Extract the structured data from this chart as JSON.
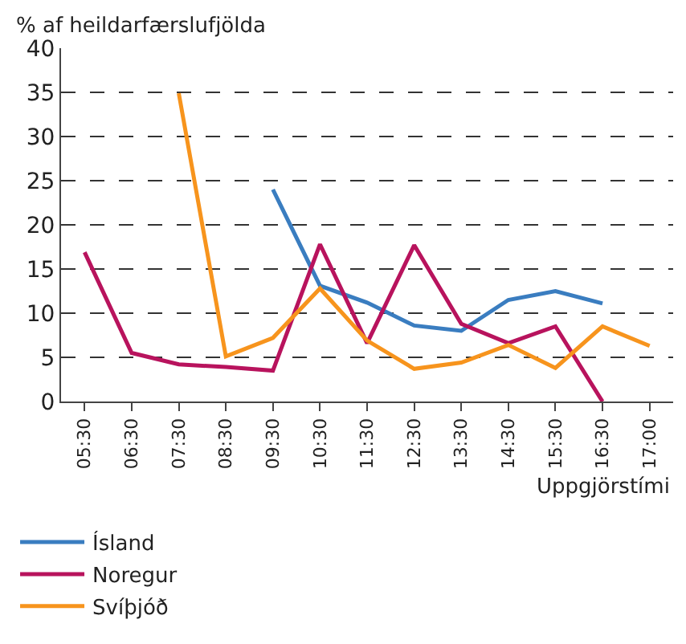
{
  "chart_data": {
    "type": "line",
    "ylabel": "% af heildarfærslufjölda",
    "xlabel": "Uppgjörstími",
    "categories": [
      "05:30",
      "06:30",
      "07:30",
      "08:30",
      "09:30",
      "10:30",
      "11:30",
      "12:30",
      "13:30",
      "14:30",
      "15:30",
      "16:30",
      "17:00"
    ],
    "series": [
      {
        "name": "Ísland",
        "color": "#3a7dc0",
        "values": [
          null,
          null,
          null,
          null,
          24.0,
          13.1,
          11.2,
          8.6,
          8.0,
          11.5,
          12.5,
          11.1,
          null
        ]
      },
      {
        "name": "Noregur",
        "color": "#b8135d",
        "values": [
          16.9,
          5.5,
          4.2,
          3.9,
          3.5,
          17.8,
          6.6,
          17.7,
          8.8,
          6.6,
          8.5,
          0,
          null
        ]
      },
      {
        "name": "Svíþjóð",
        "color": "#f7941d",
        "values": [
          null,
          null,
          34.9,
          5.1,
          7.2,
          12.8,
          6.9,
          3.7,
          4.4,
          6.4,
          3.8,
          8.5,
          6.3
        ]
      }
    ],
    "ylim": [
      0,
      40
    ],
    "yticks": [
      0,
      5,
      10,
      15,
      20,
      25,
      30,
      35,
      40
    ],
    "grid": "y",
    "legend": "bottom left",
    "marker": "none",
    "line_style": "solid"
  }
}
